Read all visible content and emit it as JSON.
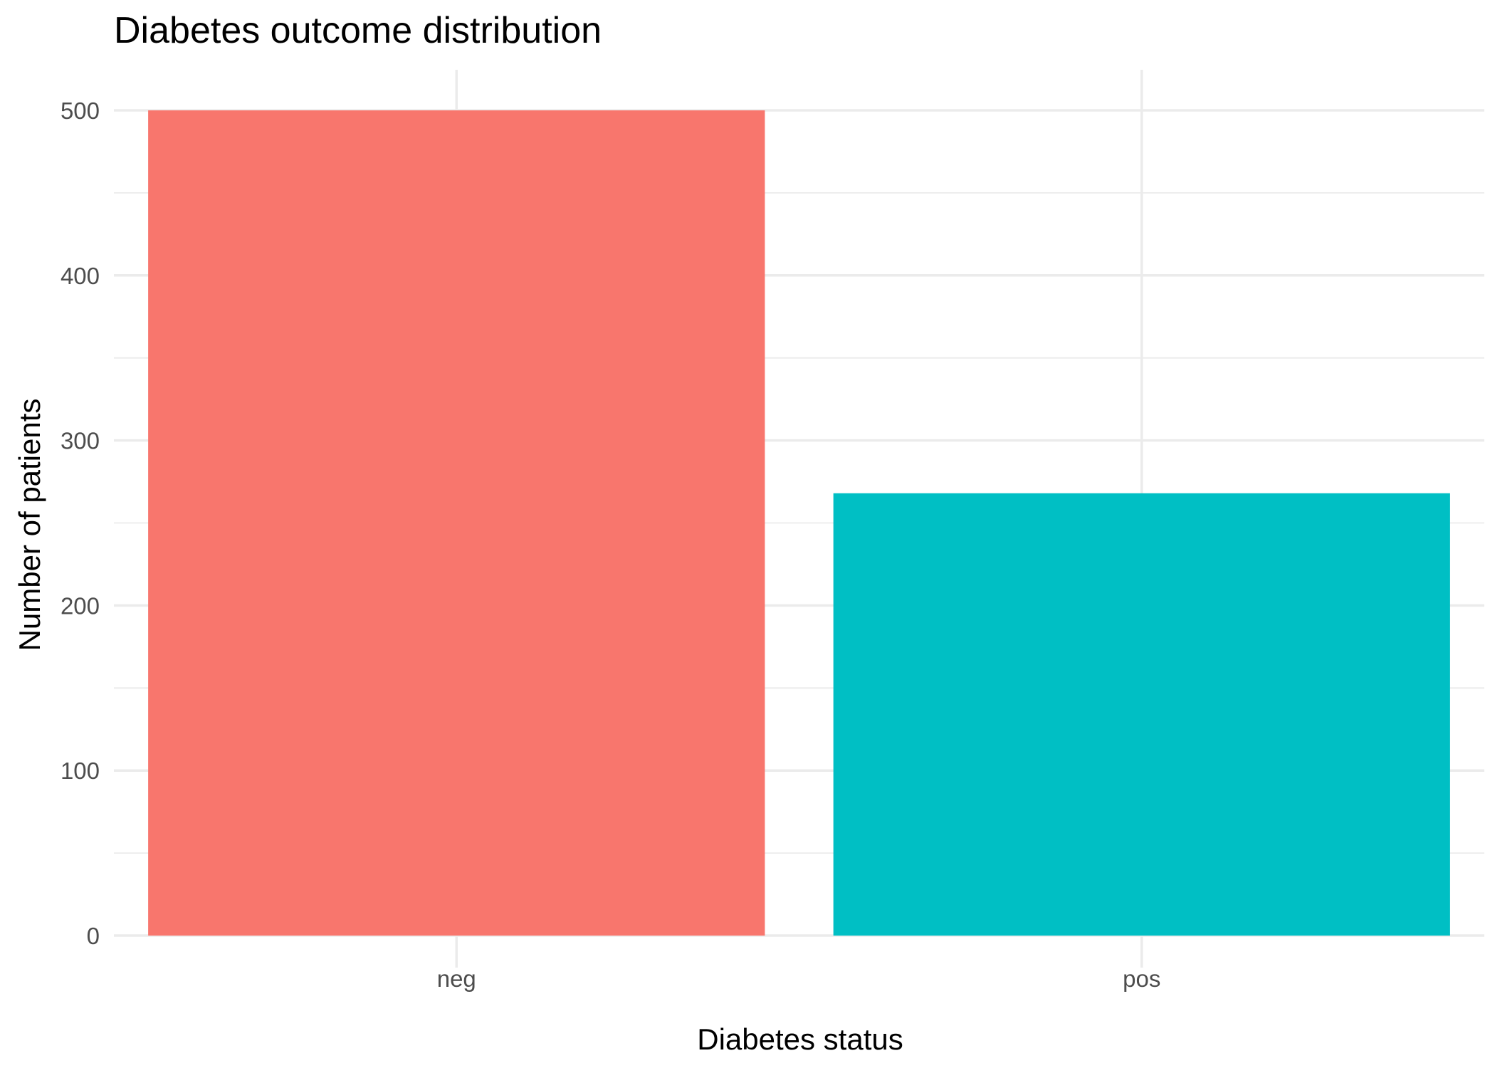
{
  "chart_data": {
    "type": "bar",
    "title": "Diabetes outcome distribution",
    "xlabel": "Diabetes status",
    "ylabel": "Number of patients",
    "categories": [
      "neg",
      "pos"
    ],
    "values": [
      500,
      268
    ],
    "colors": [
      "#f8766d",
      "#00bfc4"
    ],
    "ylim": [
      0,
      500
    ],
    "yticks": [
      0,
      100,
      200,
      300,
      400,
      500
    ],
    "ytick_labels": [
      "0",
      "100",
      "200",
      "300",
      "400",
      "500"
    ],
    "grid": true,
    "legend": "none"
  }
}
